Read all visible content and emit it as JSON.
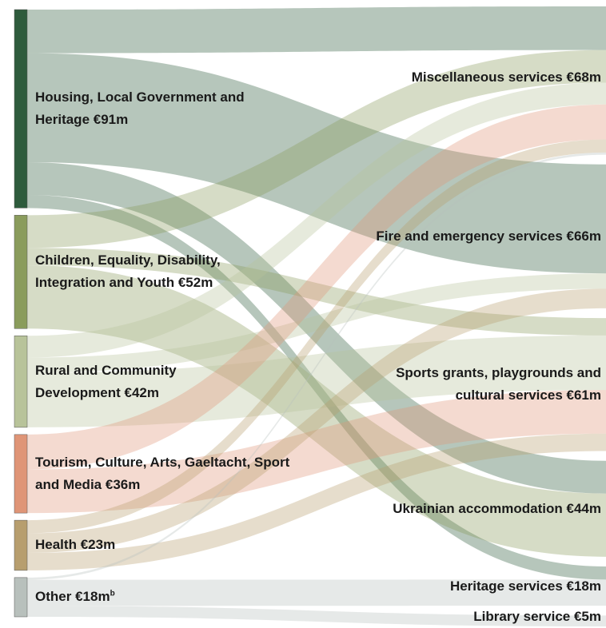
{
  "chart_data": {
    "type": "sankey",
    "sources": [
      {
        "name": "Housing, Local Government and Heritage",
        "value": 91,
        "value_label": "€91m",
        "color": "#2e5b3c"
      },
      {
        "name": "Children, Equality, Disability, Integration and Youth",
        "value": 52,
        "value_label": "€52m",
        "color": "#8a9c5c"
      },
      {
        "name": "Rural and Community Development",
        "value": 42,
        "value_label": "€42m",
        "color": "#b8c39a"
      },
      {
        "name": "Tourism, Culture, Arts, Gaeltacht, Sport and Media",
        "value": 36,
        "value_label": "€36m",
        "color": "#df9577"
      },
      {
        "name": "Health",
        "value": 23,
        "value_label": "€23m",
        "color": "#b79e6e"
      },
      {
        "name": "Other",
        "value": 18,
        "value_label": "€18m",
        "color": "#b8c0bc",
        "footnote_marker": "b"
      }
    ],
    "targets": [
      {
        "name": "Miscellaneous services",
        "value": 68,
        "value_label": "€68m"
      },
      {
        "name": "Fire and emergency services",
        "value": 66,
        "value_label": "€66m"
      },
      {
        "name": "Sports grants, playgrounds and cultural services",
        "value": 61,
        "value_label": "€61m"
      },
      {
        "name": "Ukrainian accommodation",
        "value": 44,
        "value_label": "€44m"
      },
      {
        "name": "Heritage services",
        "value": 18,
        "value_label": "€18m"
      },
      {
        "name": "Library service",
        "value": 5,
        "value_label": "€5m"
      }
    ],
    "links": [
      {
        "source": 0,
        "target": 0,
        "value": 20
      },
      {
        "source": 0,
        "target": 1,
        "value": 50
      },
      {
        "source": 0,
        "target": 3,
        "value": 15
      },
      {
        "source": 0,
        "target": 4,
        "value": 6
      },
      {
        "source": 1,
        "target": 0,
        "value": 15
      },
      {
        "source": 1,
        "target": 2,
        "value": 8
      },
      {
        "source": 1,
        "target": 3,
        "value": 29
      },
      {
        "source": 2,
        "target": 0,
        "value": 10
      },
      {
        "source": 2,
        "target": 1,
        "value": 7
      },
      {
        "source": 2,
        "target": 2,
        "value": 25
      },
      {
        "source": 3,
        "target": 0,
        "value": 16
      },
      {
        "source": 3,
        "target": 2,
        "value": 20
      },
      {
        "source": 4,
        "target": 0,
        "value": 6
      },
      {
        "source": 4,
        "target": 1,
        "value": 9
      },
      {
        "source": 4,
        "target": 2,
        "value": 8
      },
      {
        "source": 5,
        "target": 0,
        "value": 1
      },
      {
        "source": 5,
        "target": 4,
        "value": 12
      },
      {
        "source": 5,
        "target": 5,
        "value": 5
      }
    ]
  }
}
